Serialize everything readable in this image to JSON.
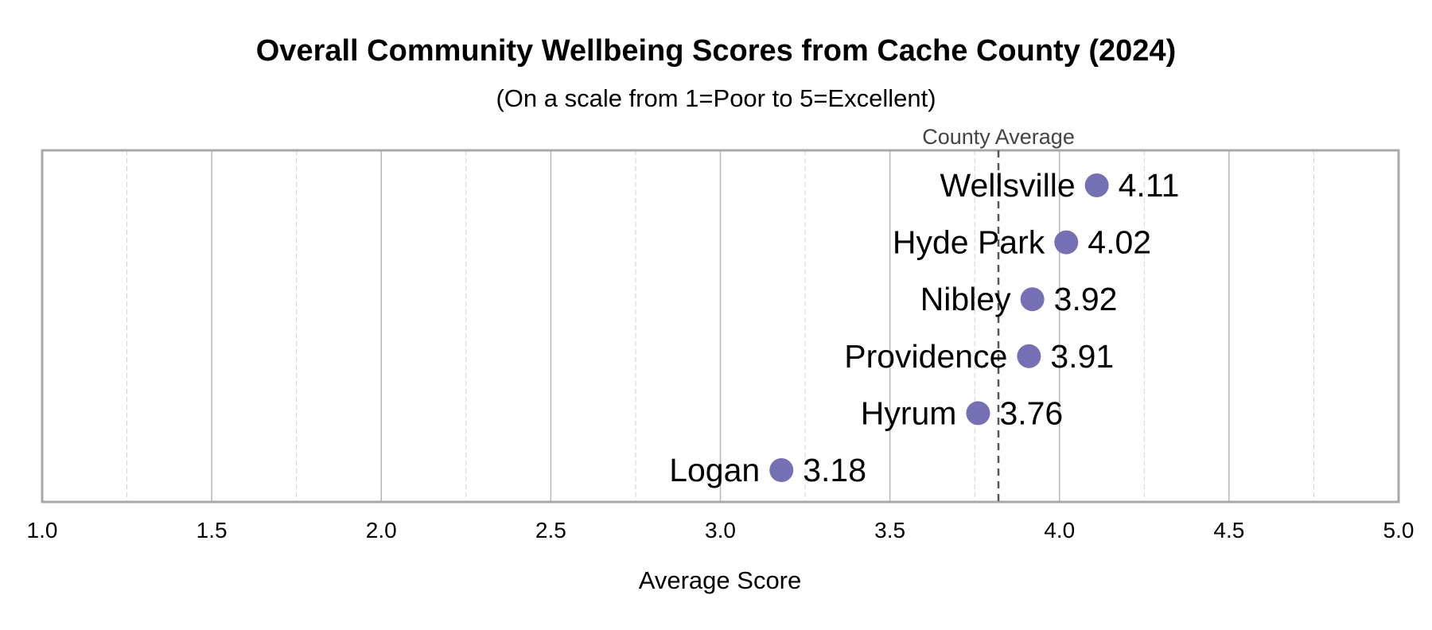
{
  "chart_data": {
    "type": "scatter",
    "title": "Overall Community Wellbeing Scores from Cache County (2024)",
    "subtitle": "(On a scale from 1=Poor to 5=Excellent)",
    "xlabel": "Average Score",
    "ylabel": "",
    "xlim": [
      1.0,
      5.0
    ],
    "x_ticks": [
      "1.0",
      "1.5",
      "2.0",
      "2.5",
      "3.0",
      "3.5",
      "4.0",
      "4.5",
      "5.0"
    ],
    "grid": true,
    "marker_color": "#7570b3",
    "categories": [
      "Wellsville",
      "Hyde Park",
      "Nibley",
      "Providence",
      "Hyrum",
      "Logan"
    ],
    "values": [
      4.11,
      4.02,
      3.92,
      3.91,
      3.76,
      3.18
    ],
    "value_labels": [
      "4.11",
      "4.02",
      "3.92",
      "3.91",
      "3.76",
      "3.18"
    ],
    "reference_line": {
      "label": "County Average",
      "value": 3.82,
      "color": "#555555"
    }
  }
}
